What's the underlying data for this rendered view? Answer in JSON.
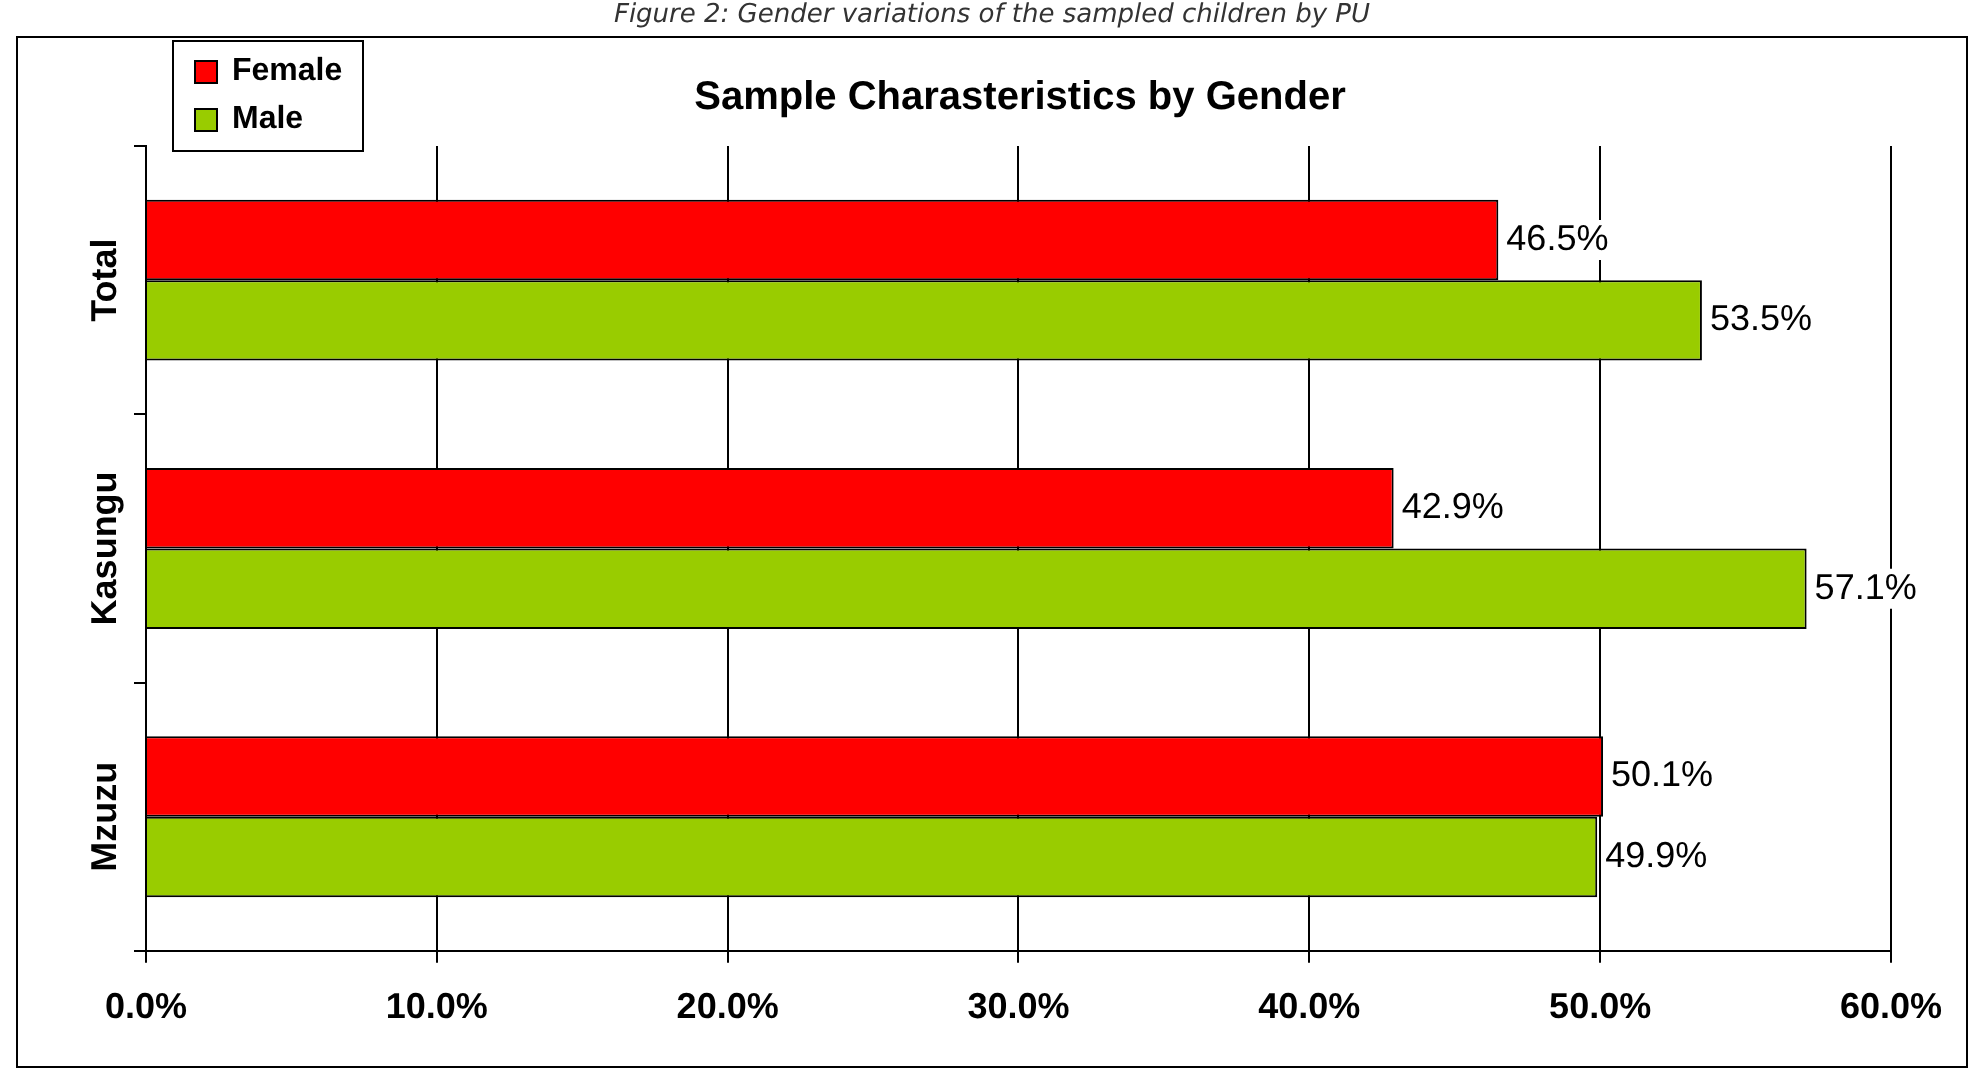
{
  "chart_data": {
    "type": "bar",
    "orientation": "horizontal",
    "title": "Sample Charasteristics by Gender",
    "annotations": [
      "Figure 2: Gender variations of the sampled children by PU"
    ],
    "categories": [
      "Total",
      "Kasungu",
      "Mzuzu"
    ],
    "series": [
      {
        "name": "Female",
        "color": "#ff0000",
        "values": [
          46.5,
          42.9,
          50.1
        ],
        "value_labels": [
          "46.5%",
          "42.9%",
          "50.1%"
        ]
      },
      {
        "name": "Male",
        "color": "#99cc00",
        "values": [
          53.5,
          57.1,
          49.9
        ],
        "value_labels": [
          "53.5%",
          "57.1%",
          "49.9%"
        ]
      }
    ],
    "xlim": [
      0,
      60
    ],
    "xticks": [
      {
        "value": 0,
        "label": "0.0%"
      },
      {
        "value": 10,
        "label": "10.0%"
      },
      {
        "value": 20,
        "label": "20.0%"
      },
      {
        "value": 30,
        "label": "30.0%"
      },
      {
        "value": 40,
        "label": "40.0%"
      },
      {
        "value": 50,
        "label": "50.0%"
      },
      {
        "value": 60,
        "label": "60.0%"
      }
    ],
    "grid": "x",
    "legend": "top left"
  }
}
